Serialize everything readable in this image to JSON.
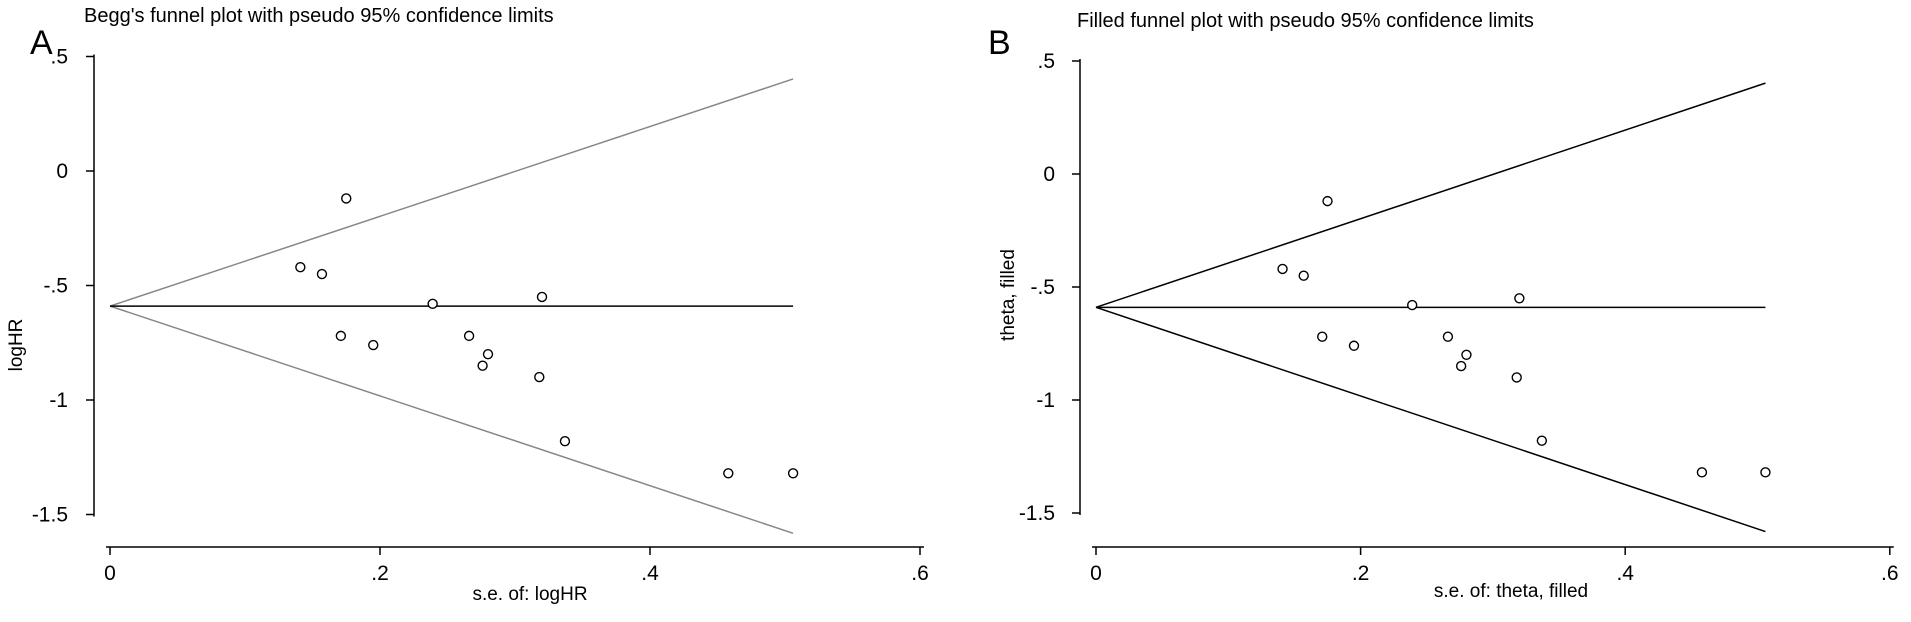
{
  "chart_data": [
    {
      "type": "scatter",
      "panel_label": "A",
      "title": "Begg's funnel plot with pseudo 95% confidence limits",
      "xlabel": "s.e. of: logHR",
      "ylabel": "logHR",
      "xlim": [
        0,
        0.6
      ],
      "ylim": [
        -1.5,
        0.5
      ],
      "x_ticks": [
        "0",
        ".2",
        ".4",
        ".6"
      ],
      "y_ticks": [
        ".5",
        "0",
        "-.5",
        "-1",
        "-1.5"
      ],
      "line_color": "#888888",
      "pooled_estimate": -0.59,
      "funnel_upper": [
        [
          0,
          -0.59
        ],
        [
          0.506,
          0.402
        ]
      ],
      "funnel_lower": [
        [
          0,
          -0.59
        ],
        [
          0.506,
          -1.582
        ]
      ],
      "points": [
        {
          "x": 0.141,
          "y": -0.42
        },
        {
          "x": 0.157,
          "y": -0.45
        },
        {
          "x": 0.171,
          "y": -0.72
        },
        {
          "x": 0.175,
          "y": -0.12
        },
        {
          "x": 0.195,
          "y": -0.76
        },
        {
          "x": 0.239,
          "y": -0.58
        },
        {
          "x": 0.266,
          "y": -0.72
        },
        {
          "x": 0.276,
          "y": -0.85
        },
        {
          "x": 0.28,
          "y": -0.8
        },
        {
          "x": 0.318,
          "y": -0.9
        },
        {
          "x": 0.32,
          "y": -0.55
        },
        {
          "x": 0.337,
          "y": -1.18
        },
        {
          "x": 0.458,
          "y": -1.32
        },
        {
          "x": 0.506,
          "y": -1.32
        }
      ]
    },
    {
      "type": "scatter",
      "panel_label": "B",
      "title": "Filled funnel plot with pseudo 95% confidence limits",
      "xlabel": "s.e. of: theta, filled",
      "ylabel": "theta, filled",
      "xlim": [
        0,
        0.6
      ],
      "ylim": [
        -1.5,
        0.5
      ],
      "x_ticks": [
        "0",
        ".2",
        ".4",
        ".6"
      ],
      "y_ticks": [
        ".5",
        "0",
        "-.5",
        "-1",
        "-1.5"
      ],
      "line_color": "#000000",
      "pooled_estimate": -0.59,
      "funnel_upper": [
        [
          0,
          -0.59
        ],
        [
          0.506,
          0.402
        ]
      ],
      "funnel_lower": [
        [
          0,
          -0.59
        ],
        [
          0.506,
          -1.582
        ]
      ],
      "points": [
        {
          "x": 0.141,
          "y": -0.42
        },
        {
          "x": 0.157,
          "y": -0.45
        },
        {
          "x": 0.171,
          "y": -0.72
        },
        {
          "x": 0.175,
          "y": -0.12
        },
        {
          "x": 0.195,
          "y": -0.76
        },
        {
          "x": 0.239,
          "y": -0.58
        },
        {
          "x": 0.266,
          "y": -0.72
        },
        {
          "x": 0.276,
          "y": -0.85
        },
        {
          "x": 0.28,
          "y": -0.8
        },
        {
          "x": 0.318,
          "y": -0.9
        },
        {
          "x": 0.32,
          "y": -0.55
        },
        {
          "x": 0.337,
          "y": -1.18
        },
        {
          "x": 0.458,
          "y": -1.32
        },
        {
          "x": 0.506,
          "y": -1.32
        }
      ]
    }
  ]
}
